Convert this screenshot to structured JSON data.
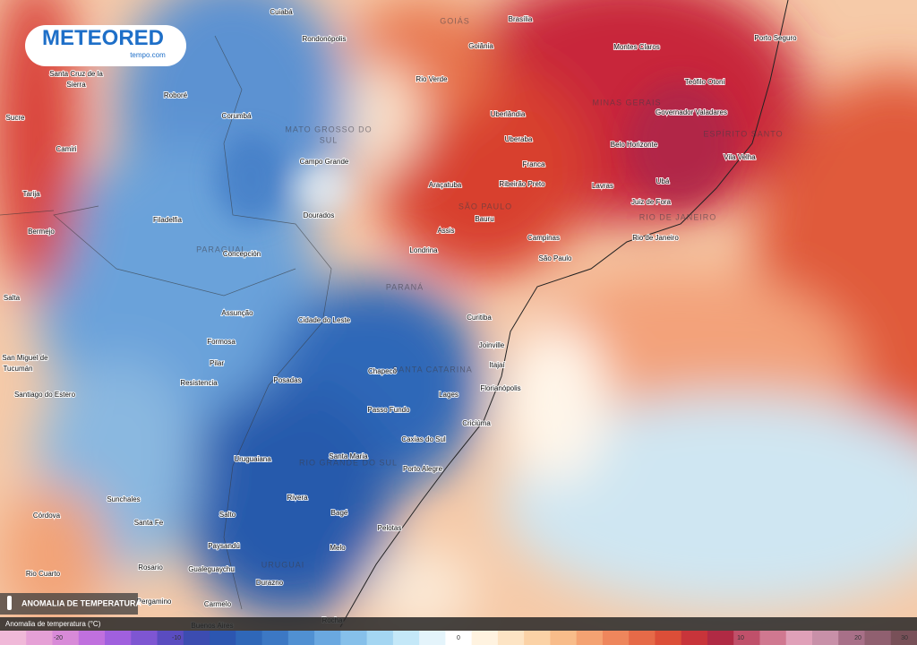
{
  "logo": {
    "name": "METEORED",
    "subtitle": "tempo.com"
  },
  "layer_title": "ANOMALIA DE TEMPERATURA",
  "legend": {
    "title": "Anomalia de temperatura (°C)",
    "ticks": [
      "-20",
      "-10",
      "0",
      "10",
      "20",
      "30"
    ],
    "colors": [
      "#f0b8d8",
      "#e6a0d6",
      "#d88ad8",
      "#c070de",
      "#a060de",
      "#7e56d2",
      "#5a4cc0",
      "#3c4cb0",
      "#2c56b0",
      "#2f67b8",
      "#3c78c4",
      "#5090d2",
      "#6aa8e0",
      "#86c0ea",
      "#a4d6f2",
      "#c4e8f8",
      "#e4f4fb",
      "#ffffff",
      "#fff3e0",
      "#fde4c4",
      "#fbd2a6",
      "#f8bc8a",
      "#f4a272",
      "#ee865c",
      "#e66a48",
      "#dc4e38",
      "#c8343a",
      "#b02a44",
      "#c0506a",
      "#d07890",
      "#e0a0b8",
      "#c890a8",
      "#a87088",
      "#906070",
      "#785058"
    ]
  },
  "regions": [
    "GOIÁS",
    "MINAS GERAIS",
    "MATO GROSSO DO",
    "SUL",
    "ESPÍRITO SANTO",
    "SÃO PAULO",
    "RIO DE JANEIRO",
    "PARAGUAI",
    "PARANÁ",
    "SANTA CATARINA",
    "RIO GRANDE DO SUL",
    "URUGUAI"
  ],
  "cities": [
    "Cuiabá",
    "Rondonópolis",
    "Brasília",
    "Goiânia",
    "Porto Seguro",
    "Montes Claros",
    "Teófilo Otoni",
    "Rio Verde",
    "Santa Cruz de la",
    "Sierra",
    "Roboré",
    "Corumbá",
    "Governador Valadares",
    "Uberlândia",
    "Sucre",
    "Uberaba",
    "Belo Horizonte",
    "Camiri",
    "Vila Velha",
    "Campo Grande",
    "Franca",
    "Ubá",
    "Araçatuba",
    "Ribeirão Preto",
    "Lavras",
    "Tarija",
    "Juiz de Fora",
    "Dourados",
    "Filadelfia",
    "Bauru",
    "Bermejo",
    "Assis",
    "Campinas",
    "Rio de Janeiro",
    "Concepción",
    "Londrina",
    "São Paulo",
    "Salta",
    "Curitiba",
    "Assunção",
    "Cidade do Leste",
    "Formosa",
    "Joinville",
    "Pilar",
    "Itajaí",
    "Chapecó",
    "San Miguel de",
    "Tucumán",
    "Resistencia",
    "Posadas",
    "Florianópolis",
    "Lages",
    "Santiago do Estero",
    "Passo Fundo",
    "Criciúma",
    "Caxias do Sul",
    "Santa Maria",
    "Uruguaiana",
    "Porto Alegre",
    "Sunchales",
    "Rivera",
    "Bagé",
    "Córdova",
    "Salto",
    "Santa Fe",
    "Pelotas",
    "Paysandú",
    "Melo",
    "Rosario",
    "Gualeguaychu",
    "Rio Cuarto",
    "Durazno",
    "Pergamino",
    "Carmelo",
    "Buenos Aires",
    "Rocha"
  ]
}
